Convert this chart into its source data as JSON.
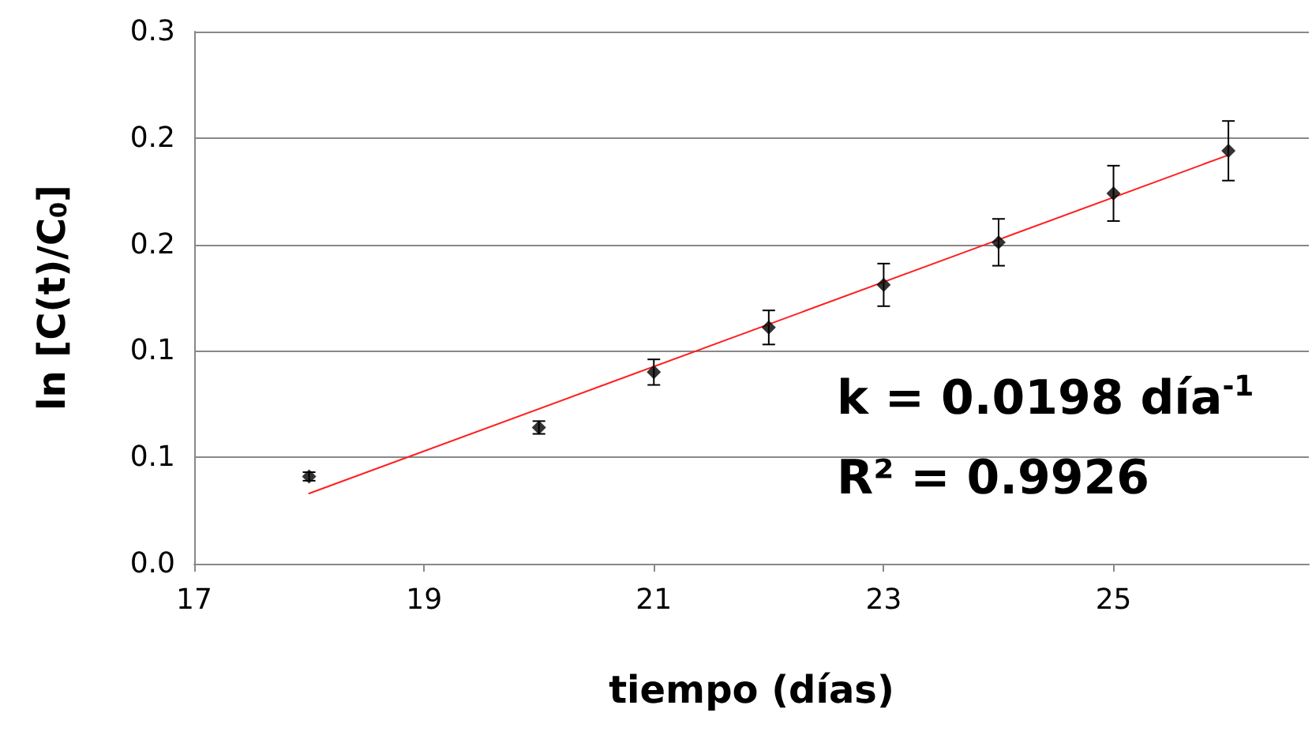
{
  "chart_data": {
    "type": "scatter",
    "xlabel": "tiempo (días)",
    "ylabel": "ln [C(t)/C$_{0}$]",
    "xlim": [
      17,
      26.7
    ],
    "xticks": [
      17,
      19,
      21,
      23,
      25
    ],
    "ylim": [
      0,
      0.25
    ],
    "yticks": [
      {
        "value": 0,
        "label": "0.0"
      },
      {
        "value": 0.05,
        "label": "0.1"
      },
      {
        "value": 0.1,
        "label": "0.1"
      },
      {
        "value": 0.15,
        "label": "0.2"
      },
      {
        "value": 0.2,
        "label": "0.2"
      },
      {
        "value": 0.25,
        "label": "0.3"
      }
    ],
    "grid": "y",
    "marker": "diamond",
    "series": [
      {
        "color": "#000000",
        "x": [
          18,
          20,
          21,
          22,
          23,
          24,
          25,
          26
        ],
        "values": [
          0.041,
          0.064,
          0.09,
          0.111,
          0.131,
          0.151,
          0.174,
          0.194
        ],
        "errors": [
          0.002,
          0.003,
          0.006,
          0.008,
          0.01,
          0.011,
          0.013,
          0.014
        ]
      },
      {
        "type": "line",
        "color": "#ff2020",
        "x": [
          18,
          26
        ],
        "values": [
          0.033,
          0.192
        ],
        "marker": "none",
        "line_style": "solid"
      }
    ],
    "annotations": [
      "k = 0.0198 día$^{-1}$",
      "R² = 0.9926"
    ]
  }
}
